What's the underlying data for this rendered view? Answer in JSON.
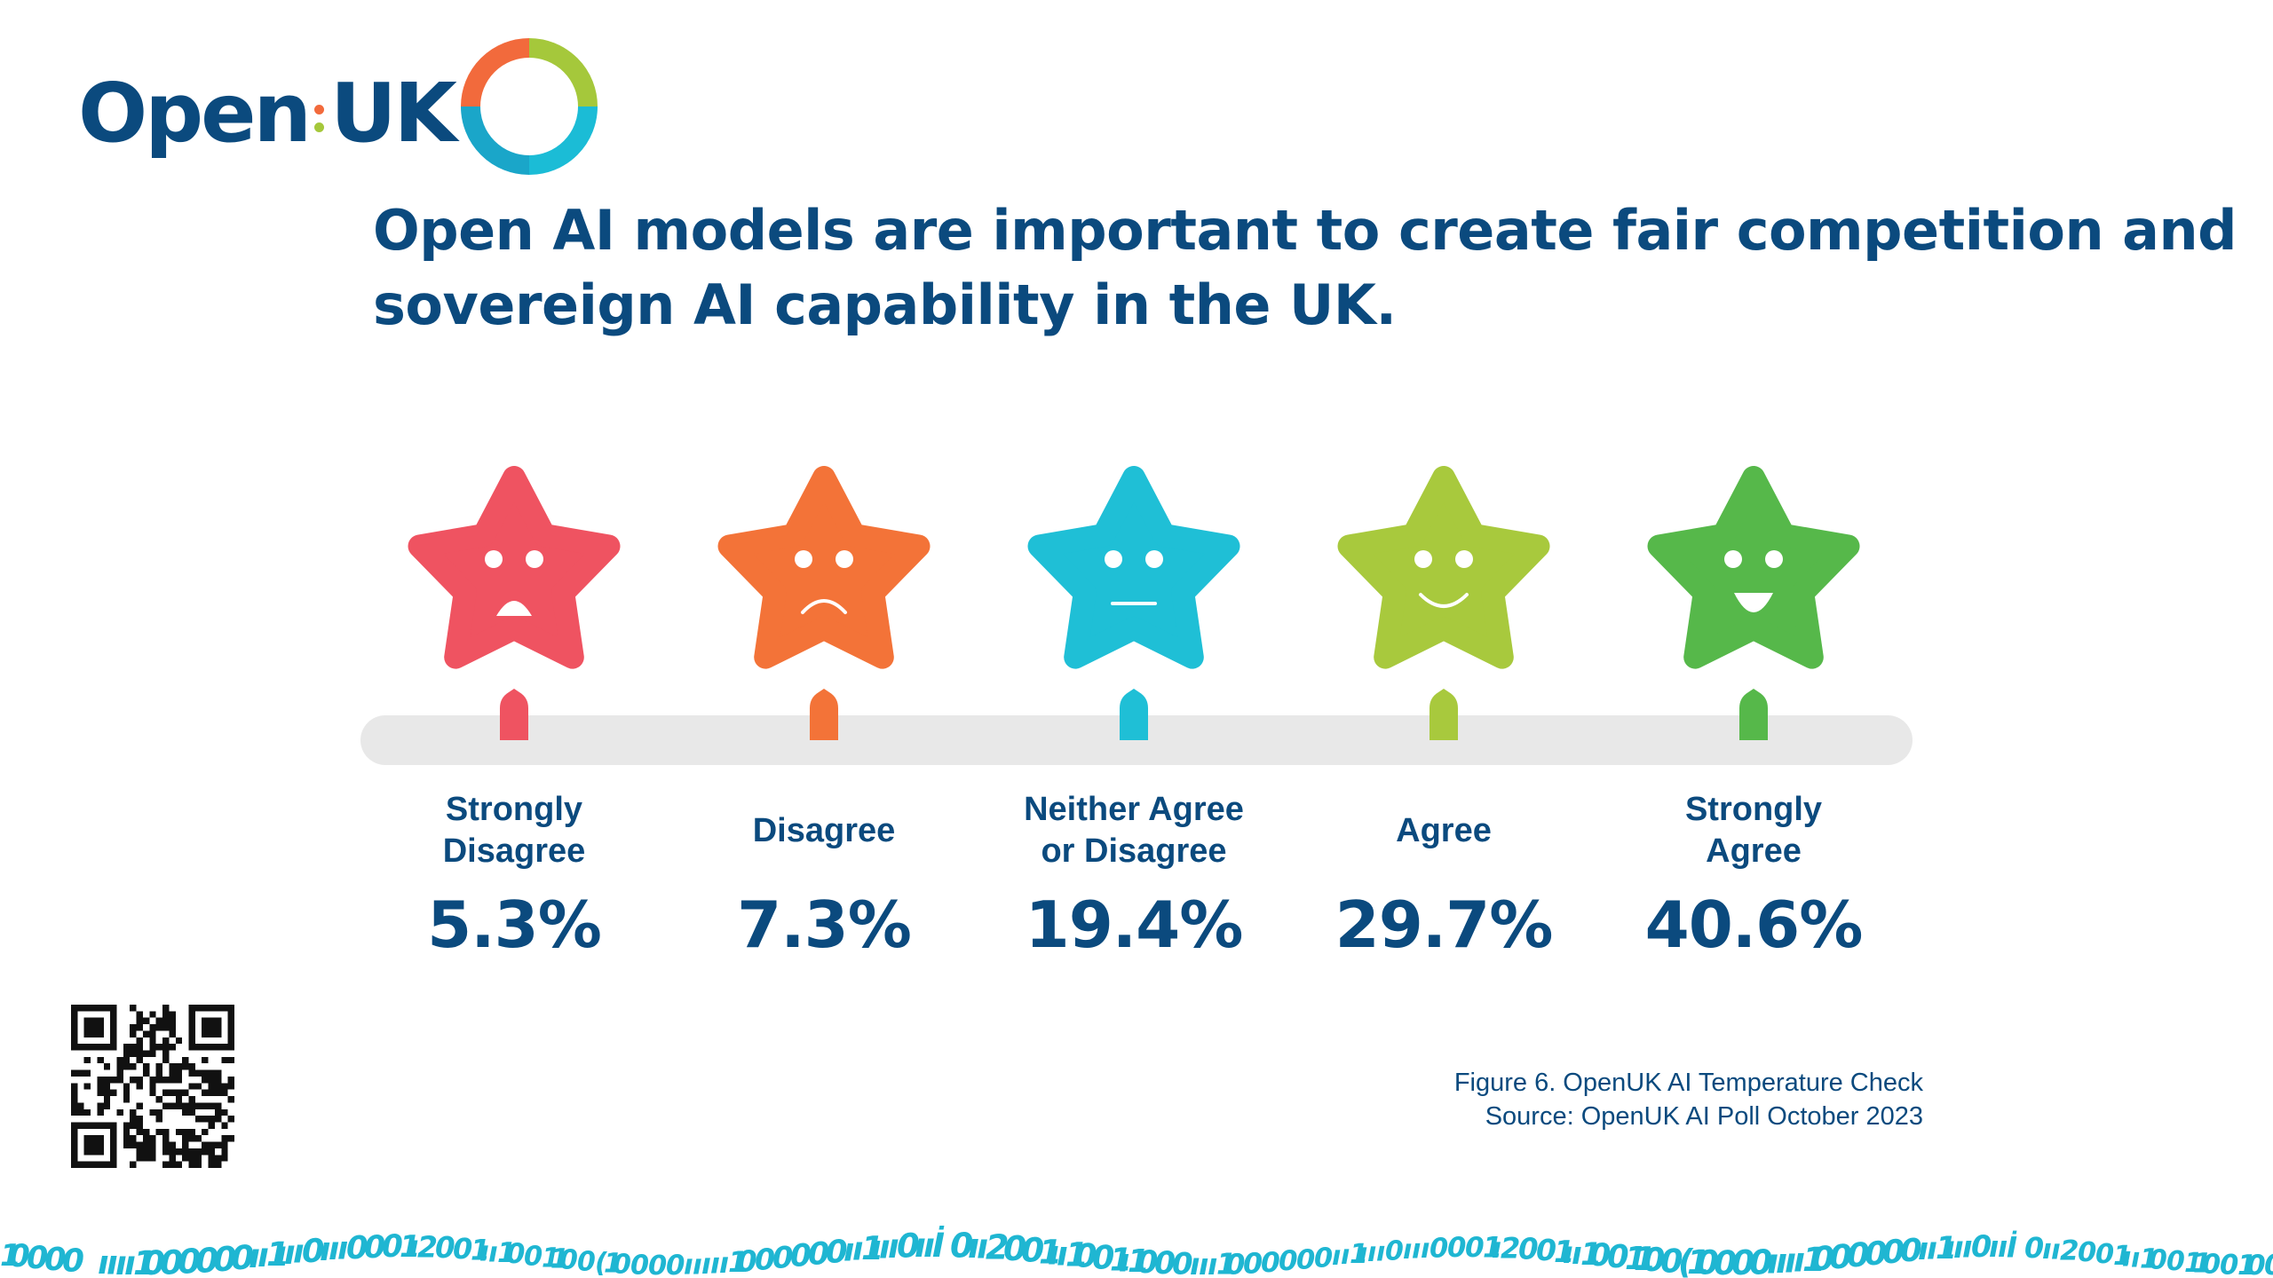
{
  "logo": {
    "text_open": "Open",
    "text_uk": "UK",
    "ring_colors": [
      "#f26a3c",
      "#a5c83b",
      "#1bbcd6",
      "#0b4a7e"
    ]
  },
  "headline": {
    "line1": "Open AI models are important to create fair competition and",
    "line2": "sovereign AI capability in the UK."
  },
  "chart_data": {
    "type": "rating-scale",
    "title": "Open AI models are important to create fair competition and sovereign AI capability in the UK.",
    "unit": "%",
    "categories": [
      "Strongly\nDisagree",
      "Disagree",
      "Neither Agree\nor Disagree",
      "Agree",
      "Strongly\nAgree"
    ],
    "values": [
      5.3,
      7.3,
      19.4,
      29.7,
      40.6
    ],
    "value_labels": [
      "5.3%",
      "7.3%",
      "19.4%",
      "29.7%",
      "40.6%"
    ],
    "colors": [
      "#ef5361",
      "#f37338",
      "#1fbfd6",
      "#a8c93d",
      "#56b84a"
    ],
    "faces": [
      "open-frown",
      "frown",
      "neutral",
      "smile",
      "grin"
    ]
  },
  "caption": {
    "line1": "Figure 6. OpenUK AI Temperature Check",
    "line2": "Source: OpenUK AI Poll October 2023"
  },
  "footer": {
    "binary_text": "10000 ıııı1000000ıı1ııı0ııı0001ı2001ıı1001100(10000ııııı1000000ıı1ııı0ııİ0ıı2001ıı1001ı1000ııı1000000ıı1ııı0ııı0001ı2001ıı1001100(10000ıııı1000000ıı1ııı0ııİ0ıı2001ıı1001100",
    "binary_color": "#1fb6d2"
  }
}
